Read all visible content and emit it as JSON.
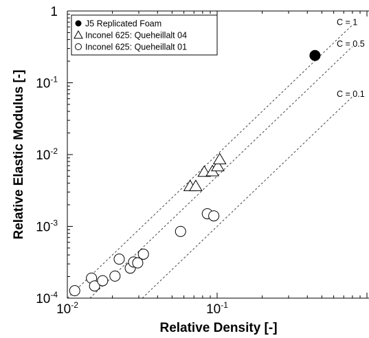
{
  "chart_data": {
    "type": "scatter",
    "xlabel": "Relative Density [-]",
    "ylabel": "Relative Elastic Modulus [-]",
    "xscale": "log",
    "yscale": "log",
    "xlim": [
      0.01,
      1
    ],
    "ylim": [
      0.0001,
      1
    ],
    "x_ticks": [
      {
        "base": "10",
        "exp": "-2"
      },
      {
        "base": "10",
        "exp": "-1"
      }
    ],
    "y_ticks": [
      {
        "base": "10",
        "exp": "-4"
      },
      {
        "base": "10",
        "exp": "-3"
      },
      {
        "base": "10",
        "exp": "-2"
      },
      {
        "base": "10",
        "exp": "-1"
      },
      {
        "base": "1",
        "exp": ""
      }
    ],
    "legend_position": "top-left",
    "series": [
      {
        "name": "J5 Replicated Foam",
        "marker": "filled-circle",
        "color": "#000000",
        "points": [
          [
            0.45,
            0.24
          ]
        ]
      },
      {
        "name": "Inconel 625: Queheillalt 04",
        "marker": "open-triangle",
        "color": "#000000",
        "points": [
          [
            0.066,
            0.0036
          ],
          [
            0.072,
            0.0036
          ],
          [
            0.082,
            0.0057
          ],
          [
            0.093,
            0.0058
          ],
          [
            0.101,
            0.0068
          ],
          [
            0.104,
            0.0085
          ]
        ]
      },
      {
        "name": "Inconel 625: Queheillalt 01",
        "marker": "open-circle",
        "color": "#000000",
        "points": [
          [
            0.0112,
            0.000127
          ],
          [
            0.0145,
            0.00019
          ],
          [
            0.0152,
            0.000148
          ],
          [
            0.0172,
            0.000175
          ],
          [
            0.0208,
            0.000203
          ],
          [
            0.0222,
            0.00035
          ],
          [
            0.0263,
            0.000262
          ],
          [
            0.0277,
            0.000319
          ],
          [
            0.0295,
            0.00031
          ],
          [
            0.0322,
            0.00041
          ],
          [
            0.057,
            0.00085
          ],
          [
            0.086,
            0.0015
          ],
          [
            0.095,
            0.0014
          ]
        ]
      }
    ],
    "reference_lines": [
      {
        "label": "C = 1",
        "C": 1
      },
      {
        "label": "C = 0.5",
        "C": 0.5
      },
      {
        "label": "C = 0.1",
        "C": 0.1
      }
    ]
  }
}
